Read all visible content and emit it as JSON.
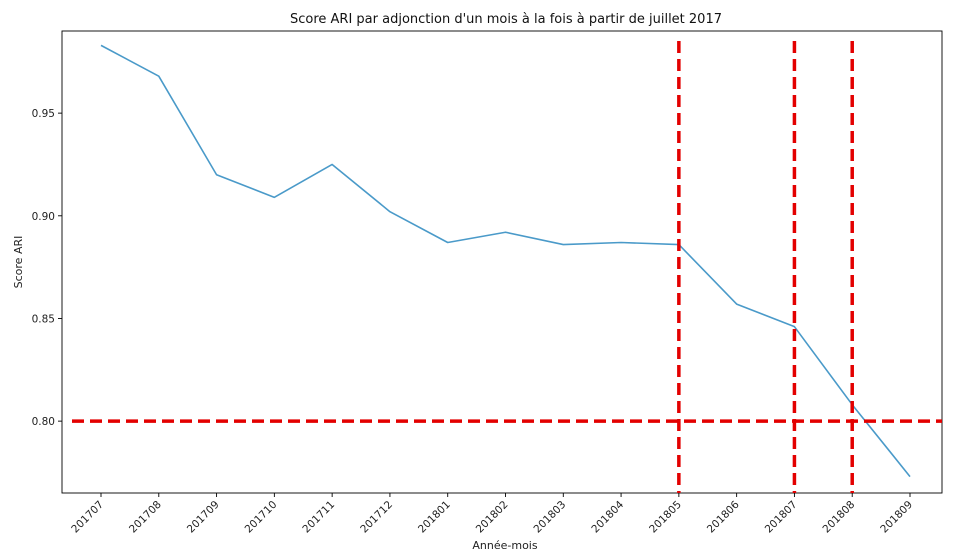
{
  "chart_data": {
    "type": "line",
    "title": "Score ARI par adjonction d'un mois à la fois à partir de juillet 2017",
    "xlabel": "Année-mois",
    "ylabel": "Score ARI",
    "categories": [
      "201707",
      "201708",
      "201709",
      "201710",
      "201711",
      "201712",
      "201801",
      "201802",
      "201803",
      "201804",
      "201805",
      "201806",
      "201807",
      "201808",
      "201809"
    ],
    "series": [
      {
        "values": [
          0.983,
          0.968,
          0.92,
          0.909,
          0.925,
          0.902,
          0.887,
          0.892,
          0.886,
          0.887,
          0.886,
          0.857,
          0.846,
          0.808,
          0.773
        ],
        "color": "#4a9ac9"
      }
    ],
    "ylim": [
      0.765,
      0.99
    ],
    "yticks": [
      "0.80",
      "0.85",
      "0.90",
      "0.95"
    ],
    "grid": false,
    "reference_lines": {
      "color": "#e30000",
      "horizontal_y": 0.8,
      "vertical_x": [
        "201805",
        "201807",
        "201808"
      ]
    }
  }
}
